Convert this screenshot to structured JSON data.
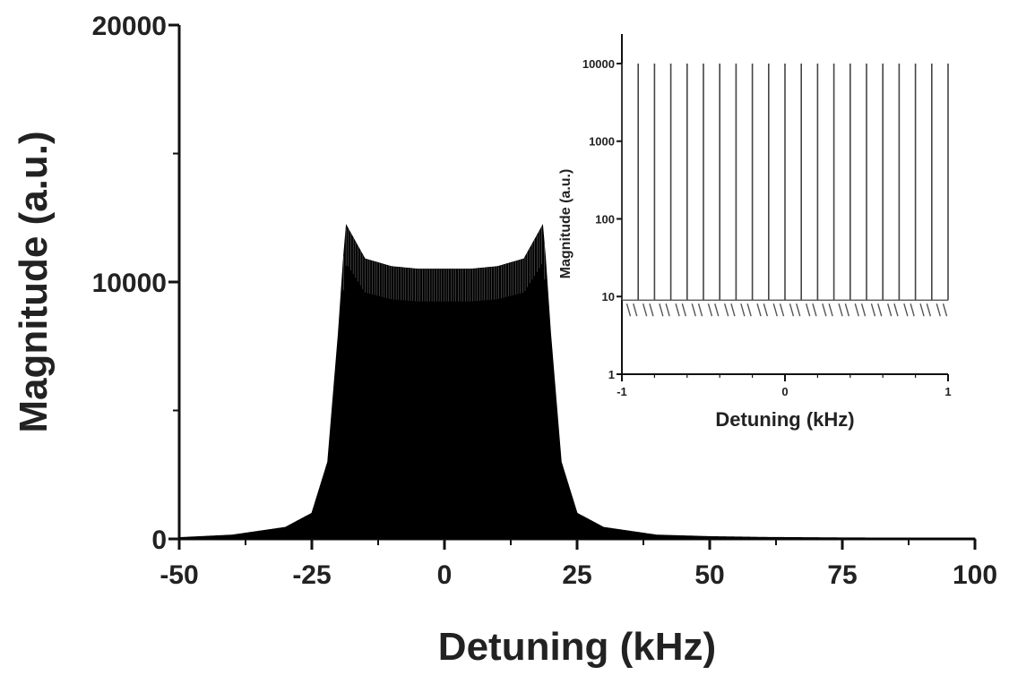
{
  "chart_data": [
    {
      "type": "area",
      "xlabel": "Detuning (kHz)",
      "ylabel": "Magnitude (a.u.)",
      "xlim": [
        -50,
        100
      ],
      "ylim": [
        0,
        20000
      ],
      "x_ticks": [
        "-50",
        "-25",
        "0",
        "25",
        "50",
        "75",
        "100"
      ],
      "y_ticks": [
        "0",
        "10000",
        "20000"
      ],
      "grid": false,
      "series": [
        {
          "x": [
            -50,
            -40,
            -30,
            -25,
            -22,
            -20,
            -19,
            -18.5,
            -15,
            -10,
            -5,
            0,
            5,
            10,
            15,
            18.5,
            19,
            20,
            22,
            25,
            30,
            40,
            50,
            60,
            75,
            90,
            100
          ],
          "values": [
            50,
            150,
            450,
            1000,
            3000,
            8000,
            11000,
            12200,
            10900,
            10600,
            10500,
            10500,
            10500,
            10600,
            10900,
            12200,
            11000,
            8000,
            3000,
            1000,
            450,
            150,
            90,
            60,
            40,
            30,
            25
          ]
        }
      ]
    },
    {
      "type": "line",
      "inset": true,
      "xlabel": "Detuning (kHz)",
      "ylabel": "Magnitude (a.u.)",
      "xlim": [
        -1,
        1
      ],
      "ylim": [
        1,
        10000
      ],
      "yscale": "log",
      "x_ticks": [
        "-1",
        "0",
        "1"
      ],
      "y_ticks": [
        "1",
        "10",
        "100",
        "1000",
        "10000"
      ],
      "grid": false,
      "series": [
        {
          "peak_spacing_khz": 0.1,
          "peak_value": 10000,
          "baseline_value": 9,
          "x_first_peak": -1,
          "x_last_peak": 1
        }
      ]
    }
  ]
}
